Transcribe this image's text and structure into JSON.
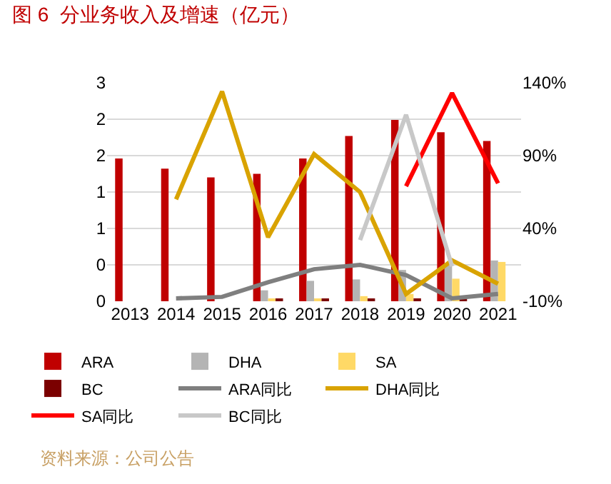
{
  "chart_data": {
    "type": "bar",
    "title": "图 6  分业务收入及增速（亿元）",
    "categories": [
      "2013",
      "2014",
      "2015",
      "2016",
      "2017",
      "2018",
      "2019",
      "2020",
      "2021"
    ],
    "series": [
      {
        "name": "ARA",
        "color": "#c00000",
        "values": [
          1.96,
          1.82,
          1.7,
          1.75,
          1.96,
          2.27,
          2.49,
          2.32,
          2.2
        ]
      },
      {
        "name": "DHA",
        "color": "#b4b4b4",
        "values": [
          null,
          null,
          null,
          0.15,
          0.28,
          0.3,
          0.43,
          0.51,
          0.56
        ]
      },
      {
        "name": "SA",
        "color": "#ffd966",
        "values": [
          null,
          null,
          null,
          0.02,
          0.02,
          0.07,
          0.1,
          0.31,
          0.54
        ]
      },
      {
        "name": "BC",
        "color": "#7b0000",
        "values": [
          null,
          null,
          null,
          0.02,
          0.02,
          0.02,
          0.04,
          0.02,
          null
        ]
      },
      {
        "name": "ARA同比",
        "type": "line",
        "axis": "y2",
        "color": "#7f7f7f",
        "values": [
          null,
          -8,
          -7,
          3,
          12,
          15,
          8,
          -8,
          -5
        ]
      },
      {
        "name": "DHA同比",
        "type": "line",
        "axis": "y2",
        "color": "#d9a300",
        "values": [
          null,
          60,
          134,
          34,
          91,
          65,
          -5,
          18,
          2
        ]
      },
      {
        "name": "SA同比",
        "type": "line",
        "axis": "y2",
        "color": "#ff0000",
        "values": [
          null,
          null,
          null,
          null,
          null,
          null,
          69,
          133,
          71
        ]
      },
      {
        "name": "BC同比",
        "type": "line",
        "axis": "y2",
        "color": "#c8c8c8",
        "values": [
          null,
          null,
          null,
          null,
          null,
          32,
          118,
          14,
          null
        ]
      }
    ],
    "ylim": [
      0,
      3
    ],
    "yticks": [
      {
        "value": 0,
        "label": "0"
      },
      {
        "value": 0.5,
        "label": "0"
      },
      {
        "value": 1,
        "label": "1"
      },
      {
        "value": 1.5,
        "label": "1"
      },
      {
        "value": 2,
        "label": "2"
      },
      {
        "value": 2.5,
        "label": "2"
      },
      {
        "value": 3,
        "label": "3"
      }
    ],
    "y2lim": [
      -10,
      140
    ],
    "y2ticks": [
      {
        "value": -10,
        "label": "-10%"
      },
      {
        "value": 40,
        "label": "40%"
      },
      {
        "value": 90,
        "label": "90%"
      },
      {
        "value": 140,
        "label": "140%"
      }
    ],
    "grid": "y",
    "legend": "bottom",
    "line_style": "solid",
    "marker": "none",
    "annotations": [
      "资料来源：公司公告"
    ]
  }
}
